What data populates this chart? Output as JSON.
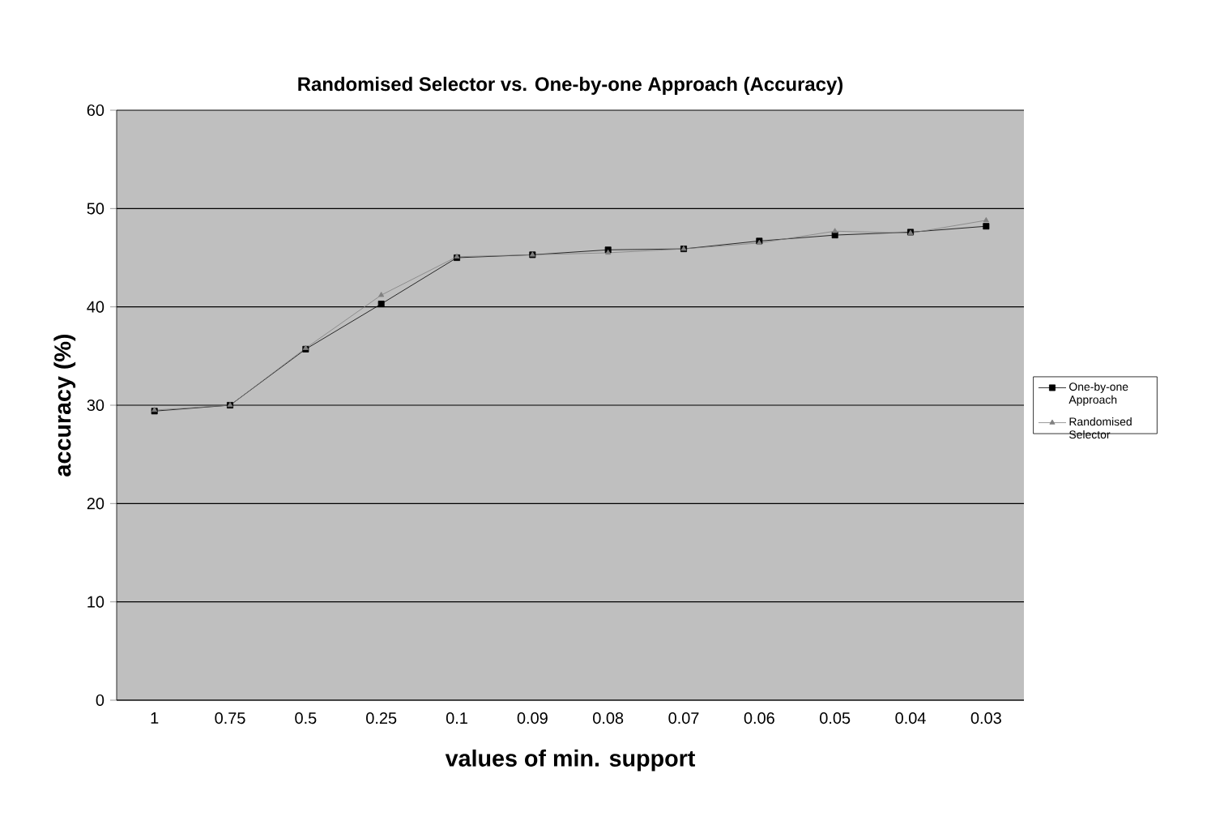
{
  "chart_data": {
    "type": "line",
    "title": "Randomised Selector vs. One-by-one Approach (Accuracy)",
    "xlabel": "values of min. support",
    "ylabel": "accuracy (%)",
    "categories": [
      "1",
      "0.75",
      "0.5",
      "0.25",
      "0.1",
      "0.09",
      "0.08",
      "0.07",
      "0.06",
      "0.05",
      "0.04",
      "0.03"
    ],
    "series": [
      {
        "name": "One-by-one Approach",
        "color": "#000000",
        "marker": "square",
        "values": [
          29.4,
          30,
          35.7,
          40.3,
          45,
          45.3,
          45.8,
          45.9,
          46.7,
          47.3,
          47.6,
          48.2
        ]
      },
      {
        "name": "Randomised Selector",
        "color": "#808080",
        "marker": "triangle",
        "values": [
          29.5,
          30,
          35.8,
          41.2,
          45.1,
          45.3,
          45.5,
          45.9,
          46.5,
          47.7,
          47.5,
          48.8
        ]
      }
    ],
    "ylim": [
      0,
      60
    ],
    "yticks": [
      0,
      10,
      20,
      30,
      40,
      50,
      60
    ],
    "grid": "y",
    "legend": "right",
    "line_style": "solid"
  }
}
